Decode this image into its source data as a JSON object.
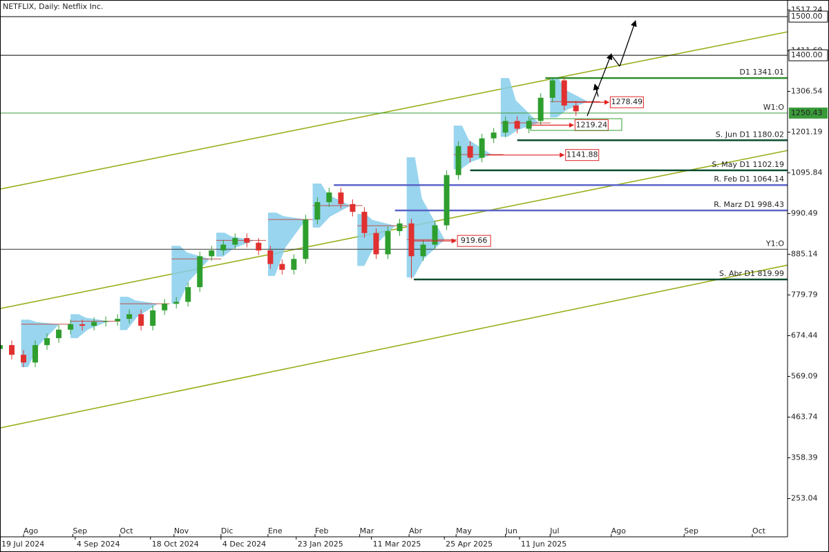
{
  "chart_data": {
    "type": "candlestick",
    "title": "NETFLIX, Daily:  Netflix Inc.",
    "xlim": [
      0,
      335
    ],
    "ylim": [
      154,
      1543
    ],
    "yticks": [
      1517.24,
      1411.69,
      1306.54,
      1201.19,
      1095.84,
      990.49,
      885.14,
      779.79,
      674.44,
      569.09,
      463.74,
      358.39,
      253.04
    ],
    "xticks": [
      {
        "value": 10,
        "label": "Ago"
      },
      {
        "value": 31,
        "label": "Sep"
      },
      {
        "value": 51,
        "label": "Oct"
      },
      {
        "value": 74,
        "label": "Nov"
      },
      {
        "value": 94,
        "label": "Dic"
      },
      {
        "value": 114,
        "label": "Ene"
      },
      {
        "value": 134,
        "label": "Feb"
      },
      {
        "value": 153,
        "label": "Mar"
      },
      {
        "value": 174,
        "label": "Abr"
      },
      {
        "value": 194,
        "label": "May"
      },
      {
        "value": 215,
        "label": "Jun"
      },
      {
        "value": 234,
        "label": "Jul"
      },
      {
        "value": 260,
        "label": "Ago"
      },
      {
        "value": 291,
        "label": "Sep"
      },
      {
        "value": 320,
        "label": "Oct"
      }
    ],
    "date_ticks": [
      {
        "value": 0,
        "label": "19 Jul 2024"
      },
      {
        "value": 32,
        "label": "4 Sep 2024"
      },
      {
        "value": 64,
        "label": "18 Oct 2024"
      },
      {
        "value": 94,
        "label": "4 Dec 2024"
      },
      {
        "value": 126,
        "label": "23 Jan 2025"
      },
      {
        "value": 158,
        "label": "11 Mar 2025"
      },
      {
        "value": 189,
        "label": "25 Apr 2025"
      },
      {
        "value": 221,
        "label": "11 Jun 2025"
      }
    ],
    "up_color": "#2e9e2e",
    "down_color": "#e03030",
    "x": [
      0,
      5,
      10,
      15,
      20,
      25,
      30,
      35,
      40,
      45,
      50,
      55,
      60,
      65,
      70,
      75,
      80,
      85,
      90,
      95,
      100,
      105,
      110,
      115,
      120,
      125,
      130,
      135,
      140,
      145,
      150,
      155,
      160,
      165,
      170,
      175,
      180,
      185,
      190,
      195,
      200,
      205,
      210,
      215,
      220,
      225,
      230,
      235,
      240,
      245
    ],
    "open": [
      640,
      650,
      625,
      605,
      650,
      668,
      690,
      704,
      700,
      710,
      712,
      718,
      730,
      700,
      740,
      757,
      762,
      800,
      880,
      895,
      910,
      927,
      915,
      895,
      860,
      845,
      873,
      975,
      1020,
      1045,
      1015,
      995,
      940,
      885,
      945,
      965,
      880,
      910,
      960,
      1090,
      1165,
      1135,
      1185,
      1200,
      1230,
      1210,
      1230,
      1290,
      1335,
      1270
    ],
    "high": [
      662,
      662,
      637,
      662,
      680,
      702,
      716,
      716,
      722,
      724,
      730,
      742,
      742,
      752,
      769,
      774,
      812,
      892,
      907,
      922,
      939,
      939,
      927,
      907,
      872,
      885,
      987,
      1032,
      1057,
      1057,
      1027,
      1007,
      952,
      957,
      977,
      977,
      922,
      972,
      1102,
      1177,
      1177,
      1197,
      1212,
      1242,
      1242,
      1242,
      1302,
      1341,
      1341,
      1282
    ],
    "low": [
      628,
      613,
      593,
      593,
      638,
      656,
      678,
      688,
      688,
      698,
      700,
      706,
      688,
      688,
      728,
      745,
      750,
      788,
      868,
      883,
      898,
      903,
      883,
      848,
      833,
      833,
      861,
      963,
      1008,
      1003,
      983,
      928,
      873,
      873,
      933,
      822,
      868,
      898,
      948,
      1078,
      1123,
      1123,
      1173,
      1188,
      1198,
      1198,
      1218,
      1278,
      1258,
      1243
    ],
    "close": [
      650,
      625,
      605,
      650,
      668,
      690,
      704,
      700,
      710,
      712,
      718,
      730,
      700,
      740,
      757,
      762,
      800,
      880,
      895,
      910,
      927,
      915,
      895,
      860,
      845,
      873,
      975,
      1020,
      1045,
      1015,
      995,
      940,
      885,
      945,
      965,
      880,
      910,
      960,
      1090,
      1165,
      1135,
      1185,
      1200,
      1230,
      1210,
      1230,
      1290,
      1335,
      1270,
      1255
    ],
    "profiles": {
      "color": "#87ceeb",
      "poc_color": "#c0504d",
      "x": [
        9,
        30,
        51,
        73,
        92,
        114,
        133,
        152,
        173,
        193,
        213,
        234
      ],
      "low": [
        593,
        668,
        689,
        757,
        879,
        829,
        954,
        855,
        825,
        1105,
        1189,
        1239
      ],
      "high": [
        716,
        730,
        775,
        907,
        941,
        993,
        1068,
        989,
        1136,
        1218,
        1341,
        1341
      ],
      "poc": [
        704,
        712,
        757,
        873,
        921,
        975,
        1011,
        959,
        923,
        1143,
        1225,
        1280
      ]
    },
    "trendlines": {
      "color": "#9aae1a",
      "x": [
        0,
        335
      ],
      "series": [
        {
          "values": [
            1053.6,
            1460.7
          ]
        },
        {
          "values": [
            744.6,
            1153.6
          ]
        },
        {
          "values": [
            435.7,
            857.1
          ]
        }
      ]
    },
    "hlines": [
      {
        "value": 1500,
        "label": "1500.00",
        "color": "#000000"
      },
      {
        "value": 1400,
        "label": "1400.00",
        "color": "#000000"
      }
    ],
    "levels": [
      {
        "value": 1341.01,
        "label": "D1 1341.01",
        "color": "#2e8b2e",
        "x_start": 232
      },
      {
        "value": 1250.43,
        "label": "W1:O",
        "axis_label": "1250.43",
        "color": "#3a9a3a",
        "x_start": 0
      },
      {
        "value": 1180.02,
        "label": "S. Jun D1 1180.02",
        "color": "#0b4d2e",
        "x_start": 220
      },
      {
        "value": 1102.19,
        "label": "S. May D1 1102.19",
        "color": "#0b4d2e",
        "x_start": 200
      },
      {
        "value": 1064.14,
        "label": "R. Feb D1 1064.14",
        "color": "#5a64c8",
        "x_start": 142
      },
      {
        "value": 998.43,
        "label": "R. Marz D1 998.43",
        "color": "#5a64c8",
        "x_start": 168
      },
      {
        "value": 898,
        "label": "Y1:O",
        "color": "#333333",
        "x_start": 0
      },
      {
        "value": 819.99,
        "label": "S. Abr D1 819.99",
        "color": "#0b4d2e",
        "x_start": 176
      }
    ],
    "markers": [
      {
        "value": 1278.49,
        "label": "1278.49",
        "x": [
          241,
          259
        ]
      },
      {
        "value": 1219.24,
        "label": "1219.24",
        "x": [
          226,
          244
        ]
      },
      {
        "value": 1141.88,
        "label": "1141.88",
        "x": [
          207,
          240
        ]
      },
      {
        "value": 919.66,
        "label": "919.66",
        "x": [
          176,
          194
        ]
      }
    ]
  }
}
